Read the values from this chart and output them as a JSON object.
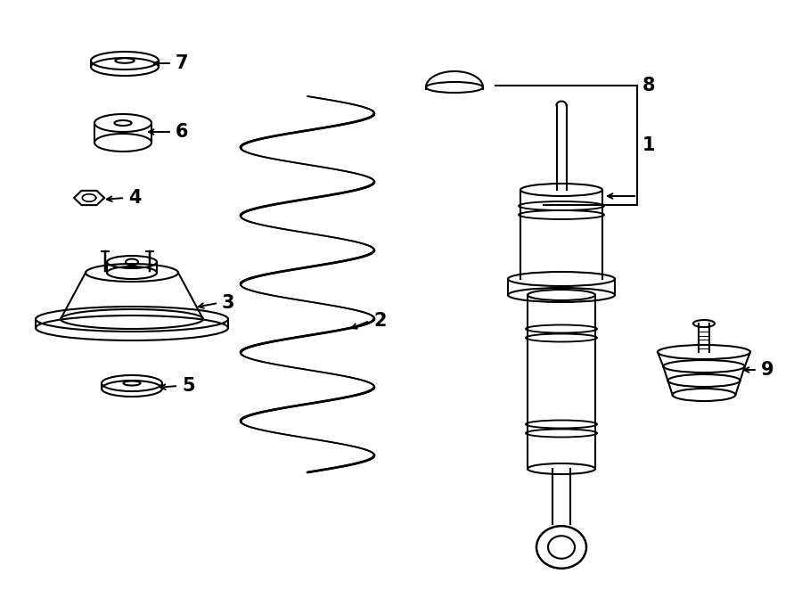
{
  "bg_color": "#ffffff",
  "line_color": "#000000",
  "line_width": 1.5,
  "label_fontsize": 16,
  "label_color": "#000000"
}
